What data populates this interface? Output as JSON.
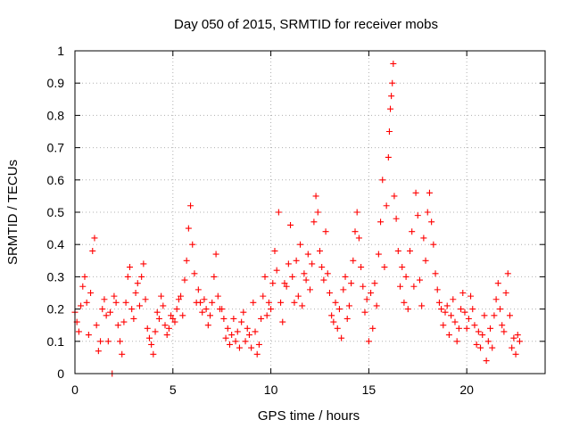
{
  "chart_data": {
    "type": "scatter",
    "title": "Day 050 of 2015, SRMTID for receiver mobs",
    "xlabel": "GPS time / hours",
    "ylabel": "SRMTID / TECUs",
    "xlim": [
      0,
      24
    ],
    "ylim": [
      0,
      1
    ],
    "x_ticks": [
      0,
      5,
      10,
      15,
      20
    ],
    "x_tick_labels": [
      "0",
      "5",
      "10",
      "15",
      "20"
    ],
    "y_ticks": [
      0,
      0.1,
      0.2,
      0.3,
      0.4,
      0.5,
      0.6,
      0.7,
      0.8,
      0.9,
      1
    ],
    "y_tick_labels": [
      "0",
      "0.1",
      "0.2",
      "0.3",
      "0.4",
      "0.5",
      "0.6",
      "0.7",
      "0.8",
      "0.9",
      "1"
    ],
    "grid": true,
    "marker": "+",
    "color": "#ff0000",
    "series": [
      {
        "name": "mobs",
        "points": [
          [
            0.0,
            0.19
          ],
          [
            0.1,
            0.16
          ],
          [
            0.2,
            0.13
          ],
          [
            0.3,
            0.21
          ],
          [
            0.4,
            0.27
          ],
          [
            0.5,
            0.3
          ],
          [
            0.6,
            0.22
          ],
          [
            0.7,
            0.12
          ],
          [
            0.8,
            0.25
          ],
          [
            0.9,
            0.38
          ],
          [
            1.0,
            0.42
          ],
          [
            1.1,
            0.15
          ],
          [
            1.2,
            0.07
          ],
          [
            1.3,
            0.1
          ],
          [
            1.4,
            0.2
          ],
          [
            1.5,
            0.23
          ],
          [
            1.6,
            0.18
          ],
          [
            1.7,
            0.1
          ],
          [
            1.8,
            0.19
          ],
          [
            1.9,
            0.0
          ],
          [
            2.0,
            0.24
          ],
          [
            2.1,
            0.22
          ],
          [
            2.2,
            0.15
          ],
          [
            2.3,
            0.1
          ],
          [
            2.4,
            0.06
          ],
          [
            2.5,
            0.16
          ],
          [
            2.6,
            0.22
          ],
          [
            2.7,
            0.3
          ],
          [
            2.8,
            0.33
          ],
          [
            2.9,
            0.2
          ],
          [
            3.0,
            0.17
          ],
          [
            3.1,
            0.25
          ],
          [
            3.2,
            0.28
          ],
          [
            3.3,
            0.21
          ],
          [
            3.4,
            0.3
          ],
          [
            3.5,
            0.34
          ],
          [
            3.6,
            0.23
          ],
          [
            3.7,
            0.14
          ],
          [
            3.8,
            0.11
          ],
          [
            3.9,
            0.09
          ],
          [
            4.0,
            0.06
          ],
          [
            4.1,
            0.13
          ],
          [
            4.2,
            0.19
          ],
          [
            4.3,
            0.17
          ],
          [
            4.4,
            0.24
          ],
          [
            4.5,
            0.21
          ],
          [
            4.6,
            0.15
          ],
          [
            4.7,
            0.12
          ],
          [
            4.8,
            0.14
          ],
          [
            4.9,
            0.18
          ],
          [
            5.0,
            0.17
          ],
          [
            5.1,
            0.16
          ],
          [
            5.2,
            0.2
          ],
          [
            5.3,
            0.23
          ],
          [
            5.4,
            0.24
          ],
          [
            5.5,
            0.18
          ],
          [
            5.6,
            0.29
          ],
          [
            5.7,
            0.35
          ],
          [
            5.8,
            0.45
          ],
          [
            5.9,
            0.52
          ],
          [
            6.0,
            0.4
          ],
          [
            6.1,
            0.31
          ],
          [
            6.2,
            0.22
          ],
          [
            6.3,
            0.26
          ],
          [
            6.4,
            0.22
          ],
          [
            6.5,
            0.19
          ],
          [
            6.6,
            0.23
          ],
          [
            6.7,
            0.2
          ],
          [
            6.8,
            0.15
          ],
          [
            6.9,
            0.18
          ],
          [
            7.0,
            0.22
          ],
          [
            7.1,
            0.3
          ],
          [
            7.2,
            0.37
          ],
          [
            7.3,
            0.24
          ],
          [
            7.4,
            0.2
          ],
          [
            7.5,
            0.2
          ],
          [
            7.6,
            0.17
          ],
          [
            7.7,
            0.11
          ],
          [
            7.8,
            0.14
          ],
          [
            7.9,
            0.09
          ],
          [
            8.0,
            0.12
          ],
          [
            8.1,
            0.17
          ],
          [
            8.2,
            0.1
          ],
          [
            8.3,
            0.13
          ],
          [
            8.4,
            0.08
          ],
          [
            8.5,
            0.16
          ],
          [
            8.6,
            0.19
          ],
          [
            8.7,
            0.1
          ],
          [
            8.8,
            0.14
          ],
          [
            8.9,
            0.12
          ],
          [
            9.0,
            0.08
          ],
          [
            9.1,
            0.22
          ],
          [
            9.2,
            0.13
          ],
          [
            9.3,
            0.06
          ],
          [
            9.4,
            0.09
          ],
          [
            9.5,
            0.17
          ],
          [
            9.6,
            0.24
          ],
          [
            9.7,
            0.3
          ],
          [
            9.8,
            0.18
          ],
          [
            9.9,
            0.22
          ],
          [
            10.0,
            0.2
          ],
          [
            10.1,
            0.28
          ],
          [
            10.2,
            0.38
          ],
          [
            10.3,
            0.32
          ],
          [
            10.4,
            0.5
          ],
          [
            10.5,
            0.22
          ],
          [
            10.6,
            0.16
          ],
          [
            10.7,
            0.28
          ],
          [
            10.8,
            0.27
          ],
          [
            10.9,
            0.34
          ],
          [
            11.0,
            0.46
          ],
          [
            11.1,
            0.3
          ],
          [
            11.2,
            0.22
          ],
          [
            11.3,
            0.35
          ],
          [
            11.4,
            0.24
          ],
          [
            11.5,
            0.4
          ],
          [
            11.6,
            0.21
          ],
          [
            11.7,
            0.31
          ],
          [
            11.8,
            0.29
          ],
          [
            11.9,
            0.37
          ],
          [
            12.0,
            0.26
          ],
          [
            12.1,
            0.34
          ],
          [
            12.2,
            0.47
          ],
          [
            12.3,
            0.55
          ],
          [
            12.4,
            0.5
          ],
          [
            12.5,
            0.38
          ],
          [
            12.6,
            0.33
          ],
          [
            12.7,
            0.29
          ],
          [
            12.8,
            0.44
          ],
          [
            12.9,
            0.31
          ],
          [
            13.0,
            0.25
          ],
          [
            13.1,
            0.18
          ],
          [
            13.2,
            0.16
          ],
          [
            13.3,
            0.22
          ],
          [
            13.4,
            0.14
          ],
          [
            13.5,
            0.2
          ],
          [
            13.6,
            0.11
          ],
          [
            13.7,
            0.26
          ],
          [
            13.8,
            0.3
          ],
          [
            13.9,
            0.17
          ],
          [
            14.0,
            0.21
          ],
          [
            14.1,
            0.28
          ],
          [
            14.2,
            0.35
          ],
          [
            14.3,
            0.44
          ],
          [
            14.4,
            0.5
          ],
          [
            14.5,
            0.42
          ],
          [
            14.6,
            0.33
          ],
          [
            14.7,
            0.27
          ],
          [
            14.8,
            0.19
          ],
          [
            14.9,
            0.23
          ],
          [
            15.0,
            0.1
          ],
          [
            15.1,
            0.25
          ],
          [
            15.2,
            0.14
          ],
          [
            15.3,
            0.28
          ],
          [
            15.4,
            0.21
          ],
          [
            15.5,
            0.37
          ],
          [
            15.6,
            0.47
          ],
          [
            15.7,
            0.6
          ],
          [
            15.8,
            0.33
          ],
          [
            15.9,
            0.52
          ],
          [
            16.0,
            0.67
          ],
          [
            16.05,
            0.75
          ],
          [
            16.1,
            0.82
          ],
          [
            16.15,
            0.86
          ],
          [
            16.2,
            0.9
          ],
          [
            16.25,
            0.96
          ],
          [
            16.3,
            0.55
          ],
          [
            16.4,
            0.48
          ],
          [
            16.5,
            0.38
          ],
          [
            16.6,
            0.27
          ],
          [
            16.7,
            0.33
          ],
          [
            16.8,
            0.22
          ],
          [
            16.9,
            0.3
          ],
          [
            17.0,
            0.2
          ],
          [
            17.1,
            0.38
          ],
          [
            17.2,
            0.44
          ],
          [
            17.3,
            0.27
          ],
          [
            17.4,
            0.56
          ],
          [
            17.5,
            0.49
          ],
          [
            17.6,
            0.29
          ],
          [
            17.7,
            0.21
          ],
          [
            17.8,
            0.42
          ],
          [
            17.9,
            0.35
          ],
          [
            18.0,
            0.5
          ],
          [
            18.1,
            0.56
          ],
          [
            18.2,
            0.47
          ],
          [
            18.3,
            0.4
          ],
          [
            18.4,
            0.31
          ],
          [
            18.5,
            0.26
          ],
          [
            18.6,
            0.22
          ],
          [
            18.7,
            0.2
          ],
          [
            18.8,
            0.15
          ],
          [
            18.9,
            0.19
          ],
          [
            19.0,
            0.21
          ],
          [
            19.1,
            0.12
          ],
          [
            19.2,
            0.18
          ],
          [
            19.3,
            0.23
          ],
          [
            19.4,
            0.16
          ],
          [
            19.5,
            0.1
          ],
          [
            19.6,
            0.14
          ],
          [
            19.7,
            0.2
          ],
          [
            19.8,
            0.25
          ],
          [
            19.9,
            0.19
          ],
          [
            20.0,
            0.14
          ],
          [
            20.1,
            0.17
          ],
          [
            20.2,
            0.24
          ],
          [
            20.3,
            0.2
          ],
          [
            20.4,
            0.15
          ],
          [
            20.5,
            0.09
          ],
          [
            20.6,
            0.13
          ],
          [
            20.7,
            0.08
          ],
          [
            20.8,
            0.12
          ],
          [
            20.9,
            0.18
          ],
          [
            21.0,
            0.04
          ],
          [
            21.1,
            0.1
          ],
          [
            21.2,
            0.14
          ],
          [
            21.3,
            0.08
          ],
          [
            21.4,
            0.18
          ],
          [
            21.5,
            0.23
          ],
          [
            21.6,
            0.28
          ],
          [
            21.7,
            0.2
          ],
          [
            21.8,
            0.15
          ],
          [
            21.9,
            0.13
          ],
          [
            22.0,
            0.25
          ],
          [
            22.1,
            0.31
          ],
          [
            22.2,
            0.18
          ],
          [
            22.3,
            0.08
          ],
          [
            22.4,
            0.11
          ],
          [
            22.5,
            0.06
          ],
          [
            22.6,
            0.12
          ],
          [
            22.7,
            0.1
          ]
        ]
      }
    ]
  }
}
